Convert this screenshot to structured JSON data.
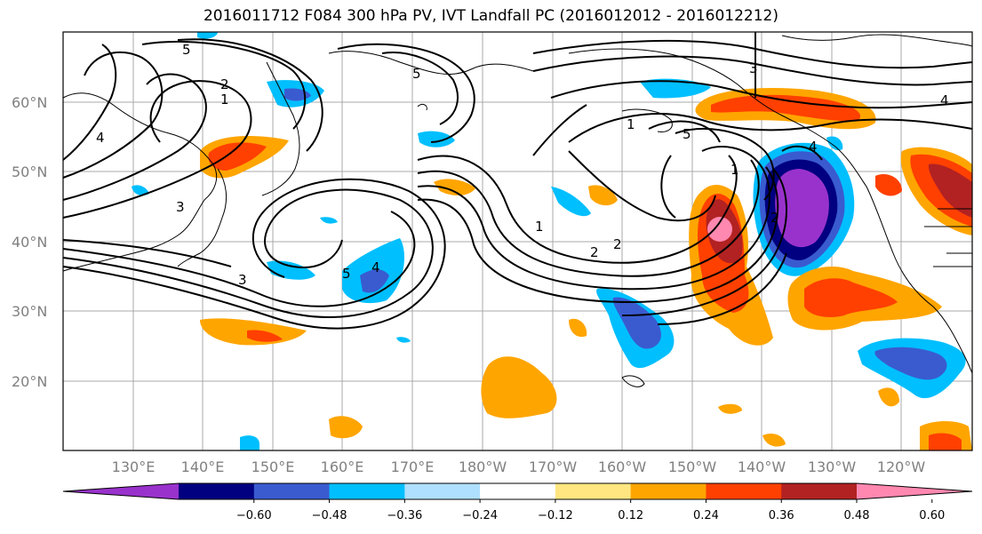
{
  "title": "2016011712 F084 300 hPa PV, IVT Landfall PC (2016012012 - 2016012212)",
  "map": {
    "lon_labels": [
      "130°E",
      "140°E",
      "150°E",
      "160°E",
      "170°E",
      "180°W",
      "170°W",
      "160°W",
      "150°W",
      "140°W",
      "130°W",
      "120°W"
    ],
    "lat_labels": [
      "60°N",
      "50°N",
      "40°N",
      "30°N",
      "20°N"
    ],
    "contour_labels": [
      "5",
      "2",
      "1",
      "4",
      "3",
      "1",
      "2",
      "3",
      "5",
      "4",
      "1",
      "2",
      "5",
      "3",
      "4",
      "5",
      "1",
      "2",
      "4"
    ]
  },
  "colorbar": {
    "colors": [
      "#9932cc",
      "#000080",
      "#3a5bd0",
      "#00bfff",
      "#b0e0ff",
      "#ffffff",
      "#ffe680",
      "#ffa500",
      "#ff4000",
      "#b22222",
      "#ff88b0"
    ],
    "tick_labels": [
      "−0.60",
      "−0.48",
      "−0.36",
      "−0.24",
      "−0.12",
      "0.12",
      "0.24",
      "0.36",
      "0.48",
      "0.60"
    ]
  }
}
